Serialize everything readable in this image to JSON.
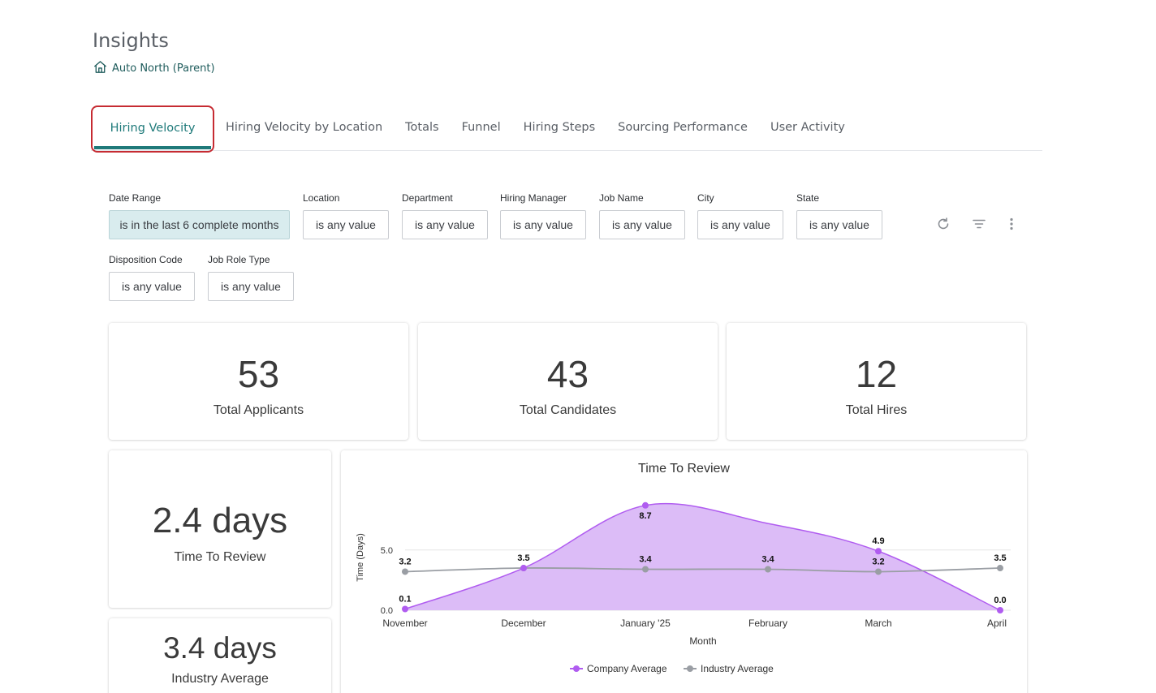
{
  "page": {
    "title": "Insights",
    "breadcrumb": "Auto North (Parent)"
  },
  "tabs": [
    {
      "label": "Hiring Velocity",
      "active": true
    },
    {
      "label": "Hiring Velocity by Location"
    },
    {
      "label": "Totals"
    },
    {
      "label": "Funnel"
    },
    {
      "label": "Hiring Steps"
    },
    {
      "label": "Sourcing Performance"
    },
    {
      "label": "User Activity"
    }
  ],
  "filters": {
    "date_range": {
      "label": "Date Range",
      "value": "is in the last 6 complete months"
    },
    "location": {
      "label": "Location",
      "value": "is any value"
    },
    "department": {
      "label": "Department",
      "value": "is any value"
    },
    "hiring_manager": {
      "label": "Hiring Manager",
      "value": "is any value"
    },
    "job_name": {
      "label": "Job Name",
      "value": "is any value"
    },
    "city": {
      "label": "City",
      "value": "is any value"
    },
    "state": {
      "label": "State",
      "value": "is any value"
    },
    "disposition_code": {
      "label": "Disposition Code",
      "value": "is any value"
    },
    "job_role_type": {
      "label": "Job Role Type",
      "value": "is any value"
    }
  },
  "toolbar_icons": [
    "refresh-icon",
    "filter-icon",
    "more-vertical-icon"
  ],
  "stats": {
    "total_applicants": {
      "value": "53",
      "label": "Total Applicants"
    },
    "total_candidates": {
      "value": "43",
      "label": "Total Candidates"
    },
    "total_hires": {
      "value": "12",
      "label": "Total Hires"
    },
    "time_to_review": {
      "value": "2.4 days",
      "label": "Time To Review"
    },
    "industry_average": {
      "value": "3.4 days",
      "label": "Industry Average"
    }
  },
  "colors": {
    "accent": "#1f7a7a",
    "active_tab_outline": "#c62b32",
    "company_series": "#b05cf0",
    "company_fill": "#dcbcf7",
    "industry_series": "#9a9ea4"
  },
  "chart_data": {
    "type": "area",
    "title": "Time To Review",
    "xlabel": "Month",
    "ylabel": "Time (Days)",
    "categories": [
      "November",
      "December",
      "January '25",
      "February",
      "March",
      "April"
    ],
    "ylim": [
      0,
      10
    ],
    "yticks": [
      "0.0",
      "5.0"
    ],
    "legend_position": "bottom",
    "series": [
      {
        "name": "Company Average",
        "values": [
          0.1,
          3.5,
          8.7,
          null,
          4.9,
          0.0
        ],
        "labels": [
          "0.1",
          "3.5",
          "8.7",
          "",
          "4.9",
          "0.0"
        ]
      },
      {
        "name": "Industry Average",
        "values": [
          3.2,
          3.5,
          3.4,
          3.4,
          3.2,
          3.5
        ],
        "labels": [
          "3.2",
          "3.5",
          "3.4",
          "3.4",
          "3.2",
          "3.5"
        ]
      }
    ]
  }
}
